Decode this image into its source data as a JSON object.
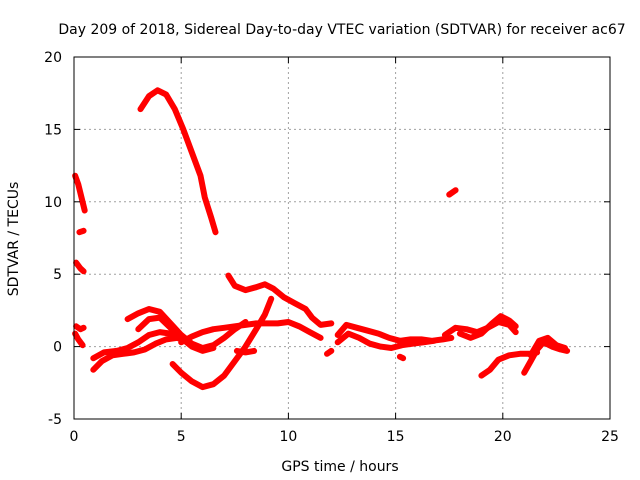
{
  "chart_data": {
    "type": "scatter",
    "title": "Day 209 of 2018, Sidereal Day-to-day VTEC variation (SDTVAR) for receiver ac67",
    "xlabel": "GPS time / hours",
    "ylabel": "SDTVAR / TECUs",
    "xlim": [
      0,
      25
    ],
    "ylim": [
      -5,
      20
    ],
    "xticks": [
      0,
      5,
      10,
      15,
      20,
      25
    ],
    "yticks": [
      -5,
      0,
      5,
      10,
      15,
      20
    ],
    "grid": true,
    "color": "#ff0000",
    "series": [
      {
        "name": "arc-1",
        "points": [
          [
            0.05,
            11.8
          ],
          [
            0.2,
            11.2
          ],
          [
            0.35,
            10.3
          ],
          [
            0.5,
            9.4
          ]
        ]
      },
      {
        "name": "arc-2",
        "points": [
          [
            0.25,
            7.9
          ],
          [
            0.45,
            8.0
          ]
        ]
      },
      {
        "name": "arc-3",
        "points": [
          [
            0.1,
            5.8
          ],
          [
            0.3,
            5.4
          ],
          [
            0.45,
            5.2
          ]
        ]
      },
      {
        "name": "arc-4",
        "points": [
          [
            0.1,
            1.4
          ],
          [
            0.3,
            1.2
          ],
          [
            0.45,
            1.3
          ]
        ]
      },
      {
        "name": "arc-5",
        "points": [
          [
            0.05,
            0.9
          ],
          [
            0.2,
            0.5
          ],
          [
            0.4,
            0.1
          ]
        ]
      },
      {
        "name": "arc-6",
        "points": [
          [
            3.1,
            16.4
          ],
          [
            3.5,
            17.3
          ],
          [
            3.9,
            17.7
          ],
          [
            4.3,
            17.4
          ],
          [
            4.7,
            16.4
          ],
          [
            5.1,
            15.0
          ],
          [
            5.5,
            13.4
          ],
          [
            5.9,
            11.8
          ],
          [
            6.1,
            10.3
          ],
          [
            6.4,
            8.9
          ],
          [
            6.6,
            7.9
          ]
        ]
      },
      {
        "name": "arc-7",
        "points": [
          [
            17.5,
            10.5
          ],
          [
            17.8,
            10.8
          ]
        ]
      },
      {
        "name": "arc-8",
        "points": [
          [
            7.2,
            4.9
          ],
          [
            7.5,
            4.2
          ],
          [
            8.0,
            3.9
          ],
          [
            8.5,
            4.1
          ],
          [
            8.9,
            4.3
          ],
          [
            9.3,
            4.0
          ],
          [
            9.8,
            3.4
          ],
          [
            10.3,
            3.0
          ],
          [
            10.8,
            2.6
          ],
          [
            11.1,
            2.0
          ],
          [
            11.5,
            1.5
          ],
          [
            12.0,
            1.6
          ]
        ]
      },
      {
        "name": "arc-9",
        "points": [
          [
            0.9,
            -1.6
          ],
          [
            1.3,
            -1.0
          ],
          [
            1.8,
            -0.6
          ],
          [
            2.3,
            -0.5
          ],
          [
            2.8,
            -0.4
          ],
          [
            3.3,
            -0.2
          ],
          [
            3.8,
            0.2
          ],
          [
            4.3,
            0.5
          ],
          [
            4.8,
            0.6
          ],
          [
            5.3,
            0.4
          ]
        ]
      },
      {
        "name": "arc-10",
        "points": [
          [
            0.9,
            -0.8
          ],
          [
            1.4,
            -0.4
          ],
          [
            2.0,
            -0.3
          ],
          [
            2.5,
            -0.1
          ],
          [
            3.0,
            0.3
          ],
          [
            3.5,
            0.8
          ],
          [
            4.0,
            1.0
          ],
          [
            4.5,
            0.9
          ],
          [
            5.0,
            0.7
          ]
        ]
      },
      {
        "name": "arc-11",
        "points": [
          [
            2.5,
            1.9
          ],
          [
            3.0,
            2.3
          ],
          [
            3.5,
            2.6
          ],
          [
            4.0,
            2.4
          ],
          [
            4.5,
            1.6
          ],
          [
            5.0,
            0.8
          ],
          [
            5.5,
            0.2
          ],
          [
            6.0,
            -0.1
          ],
          [
            6.5,
            0.1
          ],
          [
            7.0,
            0.6
          ],
          [
            7.5,
            1.2
          ],
          [
            8.0,
            1.7
          ]
        ]
      },
      {
        "name": "arc-12",
        "points": [
          [
            3.0,
            1.2
          ],
          [
            3.5,
            1.9
          ],
          [
            4.0,
            2.0
          ],
          [
            4.5,
            1.3
          ],
          [
            5.0,
            0.6
          ],
          [
            5.5,
            0.0
          ],
          [
            6.0,
            -0.3
          ],
          [
            6.5,
            -0.1
          ]
        ]
      },
      {
        "name": "arc-13",
        "points": [
          [
            4.6,
            -1.2
          ],
          [
            5.0,
            -1.8
          ],
          [
            5.5,
            -2.4
          ],
          [
            6.0,
            -2.8
          ],
          [
            6.5,
            -2.6
          ],
          [
            7.0,
            -2.0
          ],
          [
            7.5,
            -1.0
          ],
          [
            8.0,
            0.0
          ],
          [
            8.5,
            1.2
          ],
          [
            8.9,
            2.2
          ],
          [
            9.2,
            3.3
          ]
        ]
      },
      {
        "name": "arc-14",
        "points": [
          [
            5.0,
            0.3
          ],
          [
            5.5,
            0.7
          ],
          [
            6.0,
            1.0
          ],
          [
            6.5,
            1.2
          ],
          [
            7.0,
            1.3
          ],
          [
            7.5,
            1.4
          ],
          [
            8.0,
            1.5
          ],
          [
            8.5,
            1.6
          ],
          [
            9.0,
            1.6
          ],
          [
            9.5,
            1.6
          ],
          [
            10.0,
            1.7
          ],
          [
            10.5,
            1.4
          ],
          [
            11.0,
            1.0
          ],
          [
            11.5,
            0.6
          ]
        ]
      },
      {
        "name": "arc-15",
        "points": [
          [
            7.6,
            -0.3
          ],
          [
            8.0,
            -0.4
          ],
          [
            8.4,
            -0.3
          ]
        ]
      },
      {
        "name": "arc-16",
        "points": [
          [
            11.8,
            -0.5
          ],
          [
            12.0,
            -0.3
          ]
        ]
      },
      {
        "name": "arc-17",
        "points": [
          [
            12.3,
            0.8
          ],
          [
            12.7,
            1.5
          ],
          [
            13.2,
            1.3
          ],
          [
            13.7,
            1.1
          ],
          [
            14.2,
            0.9
          ],
          [
            14.7,
            0.6
          ],
          [
            15.2,
            0.4
          ],
          [
            15.7,
            0.5
          ],
          [
            16.2,
            0.5
          ],
          [
            16.7,
            0.4
          ],
          [
            17.2,
            0.5
          ],
          [
            17.6,
            0.6
          ]
        ]
      },
      {
        "name": "arc-18",
        "points": [
          [
            12.3,
            0.3
          ],
          [
            12.8,
            0.9
          ],
          [
            13.3,
            0.6
          ],
          [
            13.8,
            0.2
          ],
          [
            14.3,
            0.0
          ],
          [
            14.8,
            -0.1
          ],
          [
            15.3,
            0.1
          ],
          [
            15.8,
            0.2
          ],
          [
            16.3,
            0.3
          ],
          [
            16.8,
            0.4
          ]
        ]
      },
      {
        "name": "arc-19",
        "points": [
          [
            15.2,
            -0.7
          ],
          [
            15.35,
            -0.8
          ]
        ]
      },
      {
        "name": "arc-20",
        "points": [
          [
            17.3,
            0.8
          ],
          [
            17.8,
            1.3
          ],
          [
            18.3,
            1.2
          ],
          [
            18.8,
            1.0
          ],
          [
            19.3,
            1.3
          ],
          [
            19.8,
            1.7
          ],
          [
            20.3,
            1.5
          ],
          [
            20.6,
            1.0
          ]
        ]
      },
      {
        "name": "arc-21",
        "points": [
          [
            18.0,
            0.9
          ],
          [
            18.5,
            0.6
          ],
          [
            19.0,
            0.9
          ],
          [
            19.5,
            1.6
          ],
          [
            19.9,
            2.1
          ],
          [
            20.3,
            1.8
          ],
          [
            20.6,
            1.4
          ]
        ]
      },
      {
        "name": "arc-22",
        "points": [
          [
            19.0,
            -2.0
          ],
          [
            19.4,
            -1.6
          ],
          [
            19.8,
            -0.9
          ],
          [
            20.3,
            -0.6
          ],
          [
            20.8,
            -0.5
          ],
          [
            21.3,
            -0.5
          ],
          [
            21.6,
            -0.4
          ]
        ]
      },
      {
        "name": "arc-23",
        "points": [
          [
            21.0,
            -1.8
          ],
          [
            21.3,
            -1.0
          ],
          [
            21.6,
            -0.2
          ],
          [
            21.9,
            0.3
          ],
          [
            22.3,
            0.0
          ],
          [
            22.7,
            -0.2
          ],
          [
            23.0,
            -0.3
          ]
        ]
      },
      {
        "name": "arc-24",
        "points": [
          [
            21.3,
            -0.6
          ],
          [
            21.7,
            0.4
          ],
          [
            22.1,
            0.6
          ],
          [
            22.5,
            0.1
          ],
          [
            22.9,
            -0.1
          ]
        ]
      }
    ]
  }
}
